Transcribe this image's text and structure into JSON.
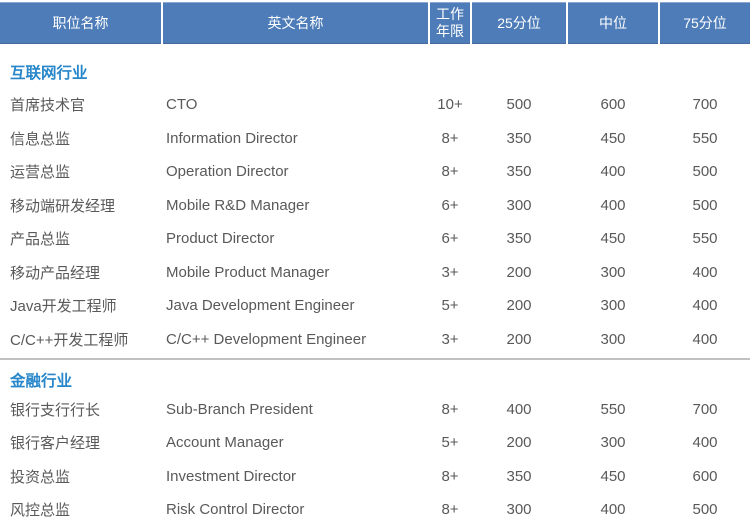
{
  "table": {
    "header": {
      "columns": [
        "职位名称",
        "英文名称",
        "工作年限",
        "25分位",
        "中位",
        "75分位"
      ]
    },
    "sections": [
      {
        "title": "互联网行业",
        "rows": [
          {
            "position_cn": "首席技术官",
            "position_en": "CTO",
            "years": "10+",
            "p25": "500",
            "p50": "600",
            "p75": "700"
          },
          {
            "position_cn": "信息总监",
            "position_en": "Information Director",
            "years": "8+",
            "p25": "350",
            "p50": "450",
            "p75": "550"
          },
          {
            "position_cn": "运营总监",
            "position_en": "Operation Director",
            "years": "8+",
            "p25": "350",
            "p50": "400",
            "p75": "500"
          },
          {
            "position_cn": "移动端研发经理",
            "position_en": "Mobile R&D Manager",
            "years": "6+",
            "p25": "300",
            "p50": "400",
            "p75": "500"
          },
          {
            "position_cn": "产品总监",
            "position_en": "Product Director",
            "years": "6+",
            "p25": "350",
            "p50": "450",
            "p75": "550"
          },
          {
            "position_cn": "移动产品经理",
            "position_en": "Mobile Product Manager",
            "years": "3+",
            "p25": "200",
            "p50": "300",
            "p75": "400"
          },
          {
            "position_cn": "Java开发工程师",
            "position_en": "Java Development Engineer",
            "years": "5+",
            "p25": "200",
            "p50": "300",
            "p75": "400"
          },
          {
            "position_cn": "C/C++开发工程师",
            "position_en": "C/C++ Development Engineer",
            "years": "3+",
            "p25": "200",
            "p50": "300",
            "p75": "400"
          }
        ]
      },
      {
        "title": "金融行业",
        "rows": [
          {
            "position_cn": "银行支行行长",
            "position_en": "Sub-Branch President",
            "years": "8+",
            "p25": "400",
            "p50": "550",
            "p75": "700"
          },
          {
            "position_cn": "银行客户经理",
            "position_en": "Account Manager",
            "years": "5+",
            "p25": "200",
            "p50": "300",
            "p75": "400"
          },
          {
            "position_cn": "投资总监",
            "position_en": "Investment Director",
            "years": "8+",
            "p25": "350",
            "p50": "450",
            "p75": "600"
          },
          {
            "position_cn": "风控总监",
            "position_en": "Risk Control Director",
            "years": "8+",
            "p25": "300",
            "p50": "400",
            "p75": "500"
          }
        ]
      }
    ]
  },
  "colors": {
    "header_bg": "#4d7cb8",
    "section_title": "#2787ca",
    "body_text": "#595959",
    "divider": "#c0c0c0"
  }
}
